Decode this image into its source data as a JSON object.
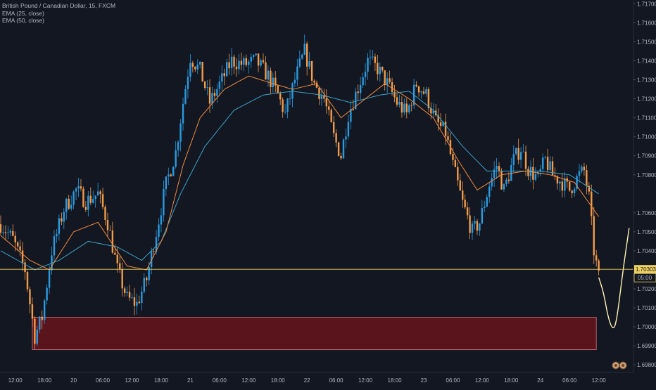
{
  "legend": {
    "symbol": "British Pound / Canadian Dollar, 15, FXCM",
    "ema25": "EMA (25, close)",
    "ema50": "EMA (50, close)"
  },
  "colors": {
    "background": "#131722",
    "up": "#2a9be0",
    "down": "#f39c4a",
    "ema25": "#f08a3c",
    "ema50": "#3aa3c8",
    "zone_fill": "#5a141c",
    "zone_border": "#b0646a",
    "projection": "#fff2b0",
    "price_line": "#f0d060",
    "axis_text": "#b2b5be"
  },
  "chart_data": {
    "type": "candlestick",
    "y_axis_ticks": [
      "1.71700",
      "1.71600",
      "1.71500",
      "1.71400",
      "1.71300",
      "1.71200",
      "1.71100",
      "1.71000",
      "1.70900",
      "1.70800",
      "1.70600",
      "1.70500",
      "1.70400",
      "1.70200",
      "1.70100",
      "1.70000",
      "1.69900",
      "1.69800"
    ],
    "x_axis_ticks": [
      "12:00",
      "18:00",
      "20",
      "06:00",
      "12:00",
      "18:00",
      "21",
      "06:00",
      "12:00",
      "18:00",
      "22",
      "06:00",
      "12:00",
      "18:00",
      "23",
      "06:00",
      "12:00",
      "18:00",
      "24",
      "06:00",
      "12:00"
    ],
    "ylim": [
      1.6976,
      1.7172
    ],
    "current_price": "1.70303",
    "countdown": "05:00",
    "zone": {
      "low": 1.6988,
      "high": 1.7005
    },
    "price_path": [
      [
        0,
        1.7054
      ],
      [
        5,
        1.7046
      ],
      [
        10,
        1.703
      ],
      [
        14,
        1.6995
      ],
      [
        17,
        1.7005
      ],
      [
        21,
        1.704
      ],
      [
        26,
        1.7062
      ],
      [
        31,
        1.7072
      ],
      [
        35,
        1.7066
      ],
      [
        40,
        1.707
      ],
      [
        44,
        1.7055
      ],
      [
        48,
        1.703
      ],
      [
        52,
        1.7015
      ],
      [
        56,
        1.7012
      ],
      [
        60,
        1.7025
      ],
      [
        64,
        1.705
      ],
      [
        68,
        1.7075
      ],
      [
        72,
        1.7092
      ],
      [
        75,
        1.7118
      ],
      [
        78,
        1.7142
      ],
      [
        82,
        1.7135
      ],
      [
        86,
        1.7118
      ],
      [
        91,
        1.713
      ],
      [
        95,
        1.714
      ],
      [
        100,
        1.7138
      ],
      [
        105,
        1.714
      ],
      [
        110,
        1.7132
      ],
      [
        114,
        1.7122
      ],
      [
        117,
        1.7112
      ],
      [
        121,
        1.713
      ],
      [
        125,
        1.7145
      ],
      [
        129,
        1.7128
      ],
      [
        133,
        1.712
      ],
      [
        137,
        1.71
      ],
      [
        140,
        1.709
      ],
      [
        143,
        1.7112
      ],
      [
        147,
        1.7126
      ],
      [
        151,
        1.714
      ],
      [
        155,
        1.7136
      ],
      [
        159,
        1.7128
      ],
      [
        163,
        1.7118
      ],
      [
        167,
        1.7112
      ],
      [
        171,
        1.7128
      ],
      [
        175,
        1.7122
      ],
      [
        179,
        1.7108
      ],
      [
        183,
        1.7102
      ],
      [
        186,
        1.7085
      ],
      [
        190,
        1.7065
      ],
      [
        194,
        1.705
      ],
      [
        197,
        1.7055
      ],
      [
        201,
        1.7075
      ],
      [
        204,
        1.7085
      ],
      [
        207,
        1.7072
      ],
      [
        211,
        1.7088
      ],
      [
        214,
        1.7094
      ],
      [
        217,
        1.7083
      ],
      [
        221,
        1.7078
      ],
      [
        224,
        1.7088
      ],
      [
        227,
        1.708
      ],
      [
        231,
        1.7076
      ],
      [
        234,
        1.7072
      ],
      [
        238,
        1.708
      ],
      [
        240,
        1.7082
      ],
      [
        242,
        1.7068
      ],
      [
        244,
        1.704
      ],
      [
        246,
        1.7026
      ]
    ],
    "ema25_path": [
      [
        0,
        1.7048
      ],
      [
        12,
        1.7035
      ],
      [
        20,
        1.703
      ],
      [
        30,
        1.705
      ],
      [
        40,
        1.7055
      ],
      [
        52,
        1.7032
      ],
      [
        60,
        1.703
      ],
      [
        68,
        1.705
      ],
      [
        75,
        1.7085
      ],
      [
        82,
        1.711
      ],
      [
        92,
        1.7125
      ],
      [
        102,
        1.7132
      ],
      [
        112,
        1.7128
      ],
      [
        120,
        1.7125
      ],
      [
        130,
        1.7128
      ],
      [
        140,
        1.711
      ],
      [
        148,
        1.7118
      ],
      [
        158,
        1.7128
      ],
      [
        168,
        1.712
      ],
      [
        178,
        1.711
      ],
      [
        188,
        1.7088
      ],
      [
        196,
        1.7072
      ],
      [
        206,
        1.708
      ],
      [
        216,
        1.7082
      ],
      [
        226,
        1.708
      ],
      [
        236,
        1.7076
      ],
      [
        246,
        1.7058
      ]
    ],
    "ema50_path": [
      [
        0,
        1.704
      ],
      [
        14,
        1.703
      ],
      [
        24,
        1.7035
      ],
      [
        36,
        1.7045
      ],
      [
        48,
        1.7042
      ],
      [
        58,
        1.7035
      ],
      [
        66,
        1.7045
      ],
      [
        74,
        1.707
      ],
      [
        84,
        1.7095
      ],
      [
        96,
        1.7114
      ],
      [
        108,
        1.7122
      ],
      [
        120,
        1.7124
      ],
      [
        132,
        1.7122
      ],
      [
        144,
        1.7118
      ],
      [
        156,
        1.7122
      ],
      [
        168,
        1.7124
      ],
      [
        178,
        1.7114
      ],
      [
        190,
        1.7095
      ],
      [
        200,
        1.7082
      ],
      [
        210,
        1.7082
      ],
      [
        222,
        1.7082
      ],
      [
        234,
        1.708
      ],
      [
        246,
        1.707
      ]
    ],
    "projection": [
      [
        246,
        1.7026
      ],
      [
        248,
        1.7018
      ],
      [
        250,
        1.7004
      ],
      [
        252,
        1.6998
      ],
      [
        253.5,
        1.7004
      ],
      [
        256,
        1.703
      ],
      [
        258.5,
        1.7052
      ]
    ],
    "event_markers_x": [
      253,
      256,
      279,
      294,
      297
    ]
  }
}
